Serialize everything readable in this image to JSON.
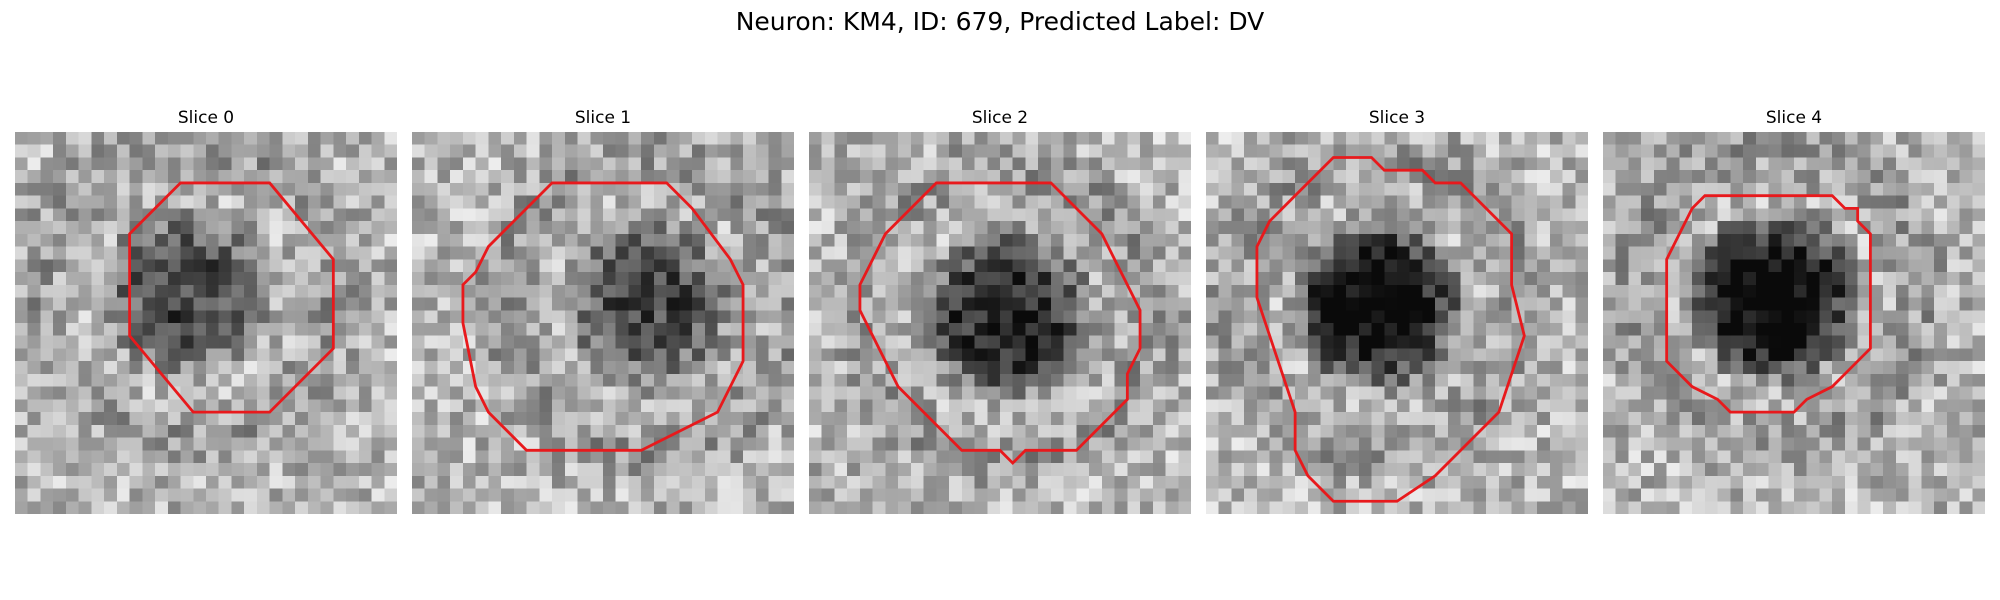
{
  "figure": {
    "title": "Neuron: KM4, ID: 679, Predicted Label: DV"
  },
  "panels": [
    {
      "title": "Slice 0",
      "dark_center": [
        0.45,
        0.42
      ],
      "dark_strength": 0.55,
      "texture_seed": 11
    },
    {
      "title": "Slice 1",
      "dark_center": [
        0.62,
        0.45
      ],
      "dark_strength": 0.55,
      "texture_seed": 23
    },
    {
      "title": "Slice 2",
      "dark_center": [
        0.52,
        0.48
      ],
      "dark_strength": 0.75,
      "texture_seed": 37
    },
    {
      "title": "Slice 3",
      "dark_center": [
        0.45,
        0.45
      ],
      "dark_strength": 0.95,
      "texture_seed": 41
    },
    {
      "title": "Slice 4",
      "dark_center": [
        0.45,
        0.43
      ],
      "dark_strength": 0.95,
      "texture_seed": 53
    }
  ],
  "colors": {
    "contour": "#e8191c"
  }
}
